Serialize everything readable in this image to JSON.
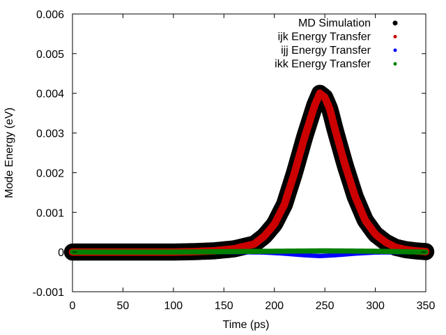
{
  "chart_data": {
    "type": "scatter",
    "title": "",
    "xlabel": "Time (ps)",
    "ylabel": "Mode Energy (eV)",
    "xlim": [
      0,
      350
    ],
    "ylim": [
      -0.001,
      0.006
    ],
    "grid": false,
    "legend_position": "top-right",
    "x_ticks": [
      0,
      50,
      100,
      150,
      200,
      250,
      300,
      350
    ],
    "y_ticks": [
      -0.001,
      0,
      0.001,
      0.002,
      0.003,
      0.004,
      0.005,
      0.006
    ],
    "x_tick_labels": [
      "0",
      "50",
      "100",
      "150",
      "200",
      "250",
      "300",
      "350"
    ],
    "y_tick_labels": [
      "-0.001",
      "0",
      "0.001",
      "0.002",
      "0.003",
      "0.004",
      "0.005",
      "0.006"
    ],
    "series": [
      {
        "name": "MD Simulation",
        "color": "#000000",
        "x": [
          0,
          50,
          100,
          120,
          140,
          160,
          180,
          190,
          200,
          210,
          220,
          230,
          240,
          245,
          250,
          255,
          260,
          270,
          280,
          290,
          300,
          310,
          320,
          330,
          340,
          350
        ],
        "y": [
          0,
          0,
          0,
          1e-05,
          3e-05,
          8e-05,
          0.0002,
          0.0004,
          0.0007,
          0.0012,
          0.002,
          0.0029,
          0.0037,
          0.004,
          0.0039,
          0.0036,
          0.0031,
          0.0022,
          0.0014,
          0.0008,
          0.00045,
          0.00025,
          0.00012,
          6e-05,
          3e-05,
          1e-05
        ],
        "spread": 0.00018
      },
      {
        "name": "ijk Energy Transfer",
        "color": "#cc0000",
        "x": [
          0,
          50,
          100,
          120,
          140,
          160,
          180,
          190,
          200,
          210,
          220,
          230,
          240,
          245,
          250,
          255,
          260,
          270,
          280,
          290,
          300,
          310,
          320,
          330,
          340,
          350
        ],
        "y": [
          0,
          0,
          0,
          1e-05,
          3e-05,
          8e-05,
          0.0002,
          0.0004,
          0.0007,
          0.0012,
          0.002,
          0.0029,
          0.0037,
          0.004,
          0.0039,
          0.0036,
          0.0031,
          0.0022,
          0.0014,
          0.0008,
          0.00045,
          0.00025,
          0.00012,
          6e-05,
          3e-05,
          1e-05
        ],
        "spread": 6e-05
      },
      {
        "name": "ijj Energy Transfer",
        "color": "#0000ff",
        "x": [
          0,
          50,
          100,
          150,
          190,
          210,
          230,
          245,
          260,
          280,
          300,
          350
        ],
        "y": [
          0,
          0,
          0,
          0,
          -1e-05,
          -4e-05,
          -8e-05,
          -0.0001,
          -8e-05,
          -4e-05,
          -1e-05,
          0
        ],
        "spread": 2e-05
      },
      {
        "name": "ikk Energy Transfer",
        "color": "#008000",
        "x": [
          0,
          50,
          100,
          150,
          200,
          250,
          300,
          350
        ],
        "y": [
          0,
          0,
          0,
          1e-05,
          2e-05,
          3e-05,
          2e-05,
          0
        ],
        "spread": 3e-05
      }
    ]
  }
}
